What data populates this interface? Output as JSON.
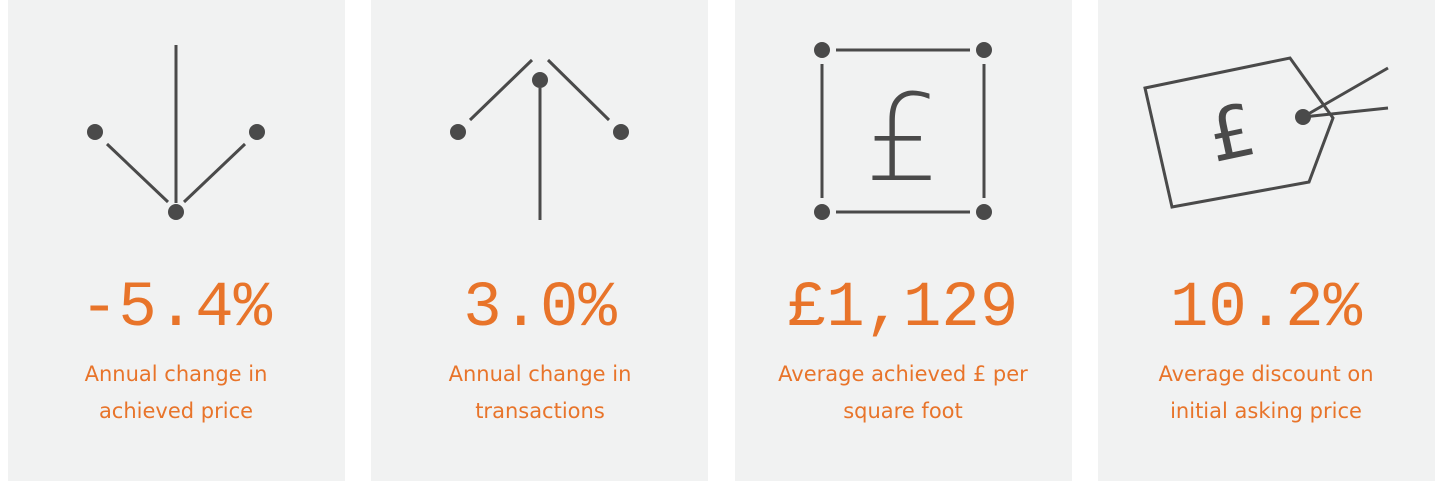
{
  "cards": [
    {
      "value": "-5.4%",
      "label": [
        "Annual change in",
        "achieved price"
      ]
    },
    {
      "value": "3.0%",
      "label": [
        "Annual change in",
        "transactions"
      ]
    },
    {
      "value": "£1,129",
      "label": [
        "Average achieved £ per",
        "square foot"
      ]
    },
    {
      "value": "10.2%",
      "label": [
        "Average discount on",
        "initial asking price"
      ]
    }
  ]
}
